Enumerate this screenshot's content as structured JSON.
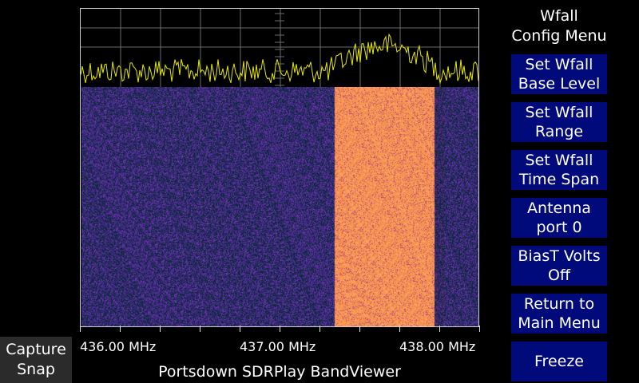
{
  "app_title": "Portsdown SDRPlay BandViewer",
  "menu": {
    "title_line1": "Wfall",
    "title_line2": "Config Menu",
    "buttons": [
      {
        "line1": "Set Wfall",
        "line2": "Base Level"
      },
      {
        "line1": "Set Wfall",
        "line2": "Range"
      },
      {
        "line1": "Set Wfall",
        "line2": "Time Span"
      },
      {
        "line1": "Antenna",
        "line2": "port 0"
      },
      {
        "line1": "BiasT Volts",
        "line2": "Off"
      },
      {
        "line1": "Return to",
        "line2": "Main Menu"
      }
    ],
    "freeze_label": "Freeze"
  },
  "capture": {
    "line1": "Capture",
    "line2": "Snap"
  },
  "axis": {
    "labels": [
      "436.00 MHz",
      "437.00 MHz",
      "438.00 MHz"
    ],
    "label_freqs_mhz": [
      436.0,
      437.0,
      438.0
    ],
    "span_mhz": [
      435.75,
      438.25
    ],
    "major_ticks": 10
  },
  "spectrum": {
    "signal_band_mhz": [
      437.35,
      437.95
    ],
    "trace_color": "#e8e800",
    "grid_color": "#6a6a6a"
  },
  "waterfall": {
    "noise_color": "#4a2890",
    "signal_color": "#f08a50",
    "floor_color": "#0a2a3a"
  },
  "colors": {
    "button_bg": "#000a7a",
    "capture_bg": "#2b2b2b"
  }
}
